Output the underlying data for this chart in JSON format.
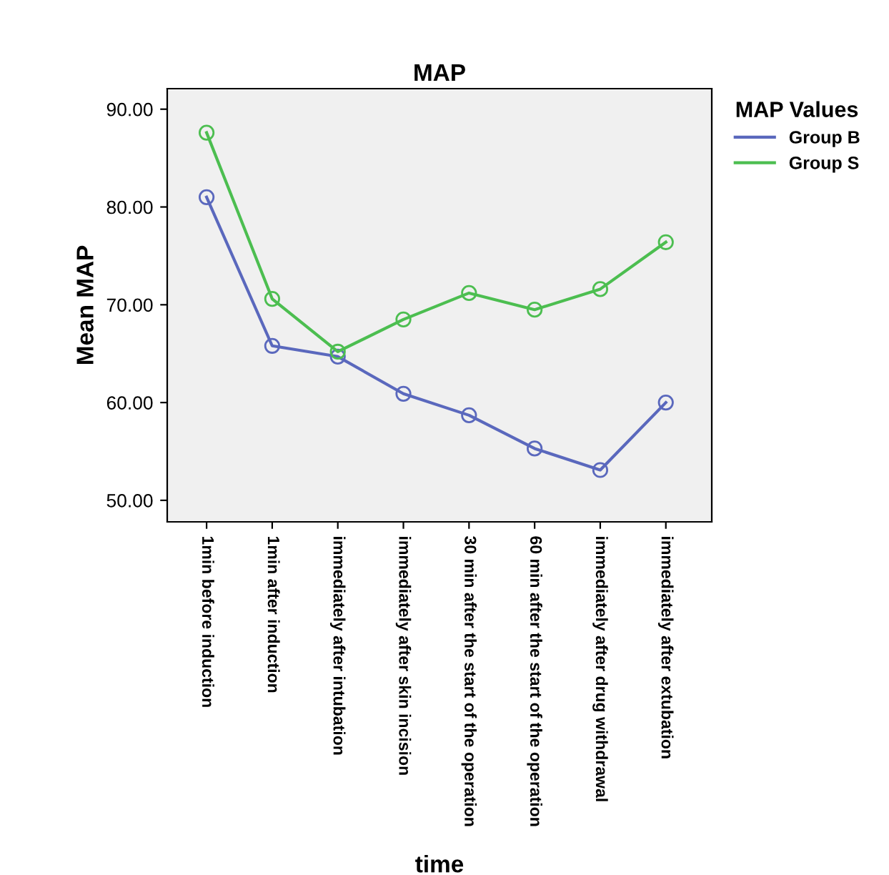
{
  "chart_data": {
    "type": "line",
    "title": "MAP",
    "xlabel": "time",
    "ylabel": "Mean MAP",
    "legend_title": "MAP Values",
    "legend": "right",
    "categories": [
      "1min before induction",
      "1min after induction",
      "immediately after intubation",
      "immediately after skin incision",
      "30 min after the start of the operation",
      "60 min after the start of the operation",
      "immediately after drug withdrawal",
      "immediately after extubation"
    ],
    "series": [
      {
        "name": "Group B",
        "color": "#5a68bd",
        "values": [
          81.0,
          65.8,
          64.7,
          60.9,
          58.7,
          55.3,
          53.1,
          60.0
        ]
      },
      {
        "name": "Group S",
        "color": "#4cbe50",
        "values": [
          87.6,
          70.6,
          65.2,
          68.5,
          71.2,
          69.5,
          71.6,
          76.4
        ]
      }
    ],
    "ylim": [
      47.8,
      92.1
    ],
    "yticks": [
      {
        "value": 50,
        "label": "50.00"
      },
      {
        "value": 60,
        "label": "60.00"
      },
      {
        "value": 70,
        "label": "70.00"
      },
      {
        "value": 80,
        "label": "80.00"
      },
      {
        "value": 90,
        "label": "90.00"
      }
    ],
    "marker": "circle",
    "line_style": "solid",
    "grid": false
  }
}
